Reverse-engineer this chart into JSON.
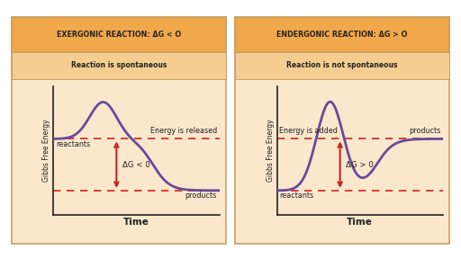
{
  "fig_bg": "#ffffff",
  "panel_bg": "#fbe8cc",
  "plot_bg": "#fbe8cc",
  "header_color": "#f0a84a",
  "subheader_color": "#f5cd90",
  "border_color": "#c8a060",
  "curve_color": "#6a4a9a",
  "dashed_color": "#cc2222",
  "arrow_color": "#cc2222",
  "text_color": "#222222",
  "left_title": "EXERGONIC REACTION: ΔG < O",
  "left_subtitle": "Reaction is spontaneous",
  "right_title": "ENDERGONIC REACTION: ΔG > O",
  "right_subtitle": "Reaction is not spontaneous",
  "xlabel": "Time",
  "left_reactants_label": "reactants",
  "left_products_label": "products",
  "left_energy_label": "Energy is released",
  "left_delta_label": "ΔG < 0",
  "right_reactants_label": "reactants",
  "right_products_label": "products",
  "right_energy_label": "Energy is added",
  "right_delta_label": "ΔG > 0",
  "gibbs_label": "Gibbs Free Energy"
}
